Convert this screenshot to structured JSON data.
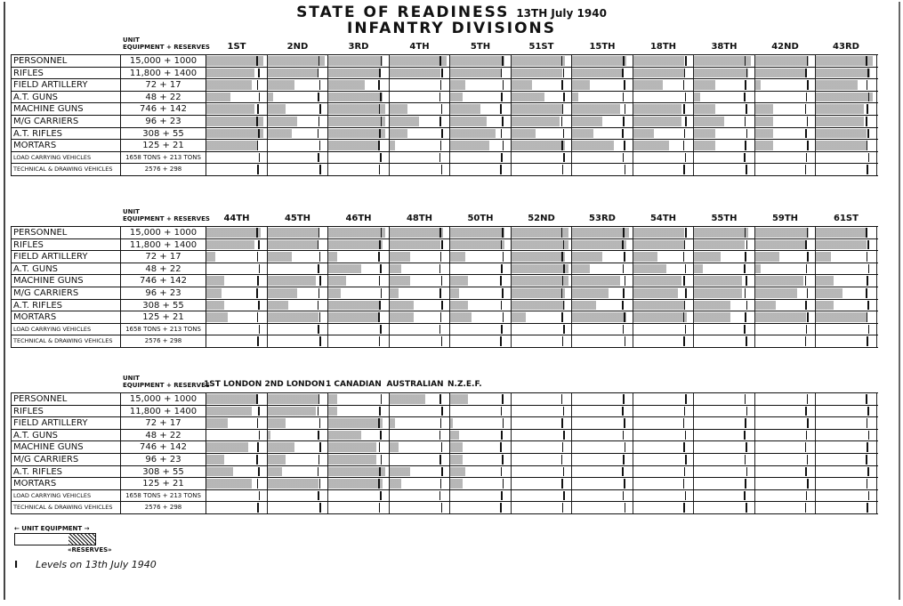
{
  "title": {
    "line1": "STATE OF READINESS",
    "date": "13TH July 1940",
    "line2": "INFANTRY DIVISIONS"
  },
  "header": {
    "unit": "UNIT",
    "equipment_reserves": "EQUIPMENT + RESERVES"
  },
  "categories": [
    "PERSONNEL",
    "RIFLES",
    "FIELD ARTILLERY",
    "A.T. GUNS",
    "MACHINE GUNS",
    "M/G CARRIERS",
    "A.T. RIFLES",
    "MORTARS",
    "LOAD CARRYING VEHICLES",
    "TECHNICAL & DRAWING VEHICLES"
  ],
  "establishment": [
    "15,000 + 1000",
    "11,800 + 1400",
    "72 + 17",
    "48 + 22",
    "746 + 142",
    "96 + 23",
    "308 + 55",
    "125 + 21",
    "1658 TONS + 213 TONS",
    "2576 + 298"
  ],
  "legend": {
    "unit_equipment": "← UNIT EQUIPMENT →",
    "reserves": "«RESERVES»",
    "levels": "Levels on 13th July 1940",
    "levels_icon": "i-beam-marker-icon"
  },
  "chart_data": [
    {
      "type": "bar",
      "subtype": "horizontal-stacked-level",
      "units": "fraction of unit equipment + reserves (estimated)",
      "divisions": [
        "1ST",
        "2ND",
        "3RD",
        "4TH",
        "5TH",
        "51ST",
        "15TH",
        "18TH",
        "38TH",
        "42ND",
        "43RD"
      ],
      "levels": [
        [
          0.95,
          0.8,
          0.75,
          0.4,
          0.8,
          0.95,
          0.95,
          0.85,
          0,
          0
        ],
        [
          0.95,
          0.85,
          0.45,
          0.1,
          0.3,
          0.5,
          0.4,
          0,
          0,
          0
        ],
        [
          0.9,
          0.85,
          0.6,
          0.9,
          0.95,
          0.95,
          0.95,
          0.85,
          0,
          0
        ],
        [
          0.95,
          0.85,
          0,
          0,
          0.3,
          0.5,
          0.3,
          0.1,
          0,
          0
        ],
        [
          0.9,
          0.85,
          0.25,
          0.2,
          0.5,
          0.6,
          0.75,
          0.65,
          0,
          0
        ],
        [
          0.9,
          0.85,
          0.35,
          0.55,
          0.85,
          0.8,
          0.4,
          0.9,
          0,
          0
        ],
        [
          0.9,
          0.85,
          0.3,
          0.1,
          0.8,
          0.5,
          0.35,
          0.7,
          0,
          0
        ],
        [
          0.85,
          0.85,
          0.5,
          0,
          0.8,
          0.8,
          0.35,
          0.6,
          0,
          0
        ],
        [
          0.95,
          0.9,
          0.35,
          0.1,
          0.35,
          0.5,
          0.35,
          0.35,
          0,
          0
        ],
        [
          0.9,
          0.85,
          0.1,
          0,
          0.3,
          0.3,
          0.3,
          0.3,
          0,
          0
        ],
        [
          0.95,
          0.9,
          0.7,
          0.95,
          0.8,
          0.8,
          0.85,
          0.85,
          0,
          0
        ]
      ]
    },
    {
      "type": "bar",
      "subtype": "horizontal-stacked-level",
      "units": "fraction of unit equipment + reserves (estimated)",
      "divisions": [
        "44TH",
        "45TH",
        "46TH",
        "48TH",
        "50TH",
        "52ND",
        "53RD",
        "54TH",
        "55TH",
        "59TH",
        "61ST"
      ],
      "levels": [
        [
          0.9,
          0.8,
          0.15,
          0,
          0.3,
          0.25,
          0.3,
          0.35,
          0,
          0
        ],
        [
          0.85,
          0.85,
          0.4,
          0,
          0.8,
          0.5,
          0.35,
          0.85,
          0,
          0
        ],
        [
          0.95,
          0.9,
          0.15,
          0.55,
          0.3,
          0.2,
          0.85,
          0.85,
          0,
          0
        ],
        [
          0.9,
          0.85,
          0.35,
          0.2,
          0.35,
          0.15,
          0.4,
          0.4,
          0,
          0
        ],
        [
          0.9,
          0.9,
          0.25,
          0,
          0.3,
          0.15,
          0.3,
          0.35,
          0,
          0
        ],
        [
          0.95,
          0.95,
          0.9,
          0.95,
          0.95,
          0.9,
          0.9,
          0.25,
          0,
          0
        ],
        [
          0.95,
          0.9,
          0.5,
          0.3,
          0.8,
          0.6,
          0.4,
          0.9,
          0,
          0
        ],
        [
          0.85,
          0.85,
          0.4,
          0.55,
          0.8,
          0.75,
          0.85,
          0.9,
          0,
          0
        ],
        [
          0.9,
          0.85,
          0.45,
          0.15,
          0.8,
          0.8,
          0.6,
          0.6,
          0,
          0
        ],
        [
          0.9,
          0.85,
          0.4,
          0.1,
          0.8,
          0.7,
          0.35,
          0.85,
          0,
          0
        ],
        [
          0.85,
          0.85,
          0.25,
          0,
          0.3,
          0.45,
          0.3,
          0.85,
          0,
          0
        ]
      ]
    },
    {
      "type": "bar",
      "subtype": "horizontal-stacked-level",
      "units": "fraction of unit equipment + reserves (estimated)",
      "divisions": [
        "1ST LONDON",
        "2ND LONDON",
        "1 CANADIAN",
        "AUSTRALIAN",
        "N.Z.E.F.",
        "",
        "",
        "",
        "",
        "",
        ""
      ],
      "levels": [
        [
          0.85,
          0.75,
          0.35,
          0,
          0.7,
          0.3,
          0.45,
          0.75,
          0,
          0
        ],
        [
          0.85,
          0.8,
          0.3,
          0.05,
          0.45,
          0.3,
          0.25,
          0.85,
          0,
          0
        ],
        [
          0.15,
          0.15,
          0.9,
          0.55,
          0.8,
          0.8,
          0.95,
          0.9,
          0,
          0
        ],
        [
          0.6,
          0,
          0.1,
          0,
          0.15,
          0,
          0.35,
          0.2,
          0,
          0
        ],
        [
          0.3,
          0,
          0.05,
          0.15,
          0.2,
          0.2,
          0.25,
          0.2,
          0,
          0
        ],
        [
          0,
          0,
          0,
          0,
          0,
          0,
          0,
          0,
          0,
          0
        ],
        [
          0,
          0,
          0,
          0,
          0,
          0,
          0,
          0,
          0,
          0
        ],
        [
          0,
          0,
          0,
          0,
          0,
          0,
          0,
          0,
          0,
          0
        ],
        [
          0,
          0,
          0,
          0,
          0,
          0,
          0,
          0,
          0,
          0
        ],
        [
          0,
          0,
          0,
          0,
          0,
          0,
          0,
          0,
          0,
          0
        ],
        [
          0,
          0,
          0,
          0,
          0,
          0,
          0,
          0,
          0,
          0
        ]
      ]
    }
  ]
}
